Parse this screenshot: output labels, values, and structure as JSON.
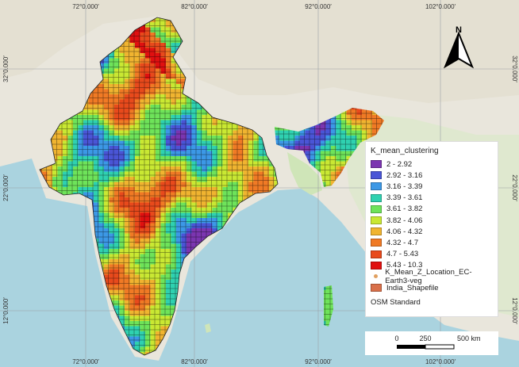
{
  "map": {
    "lon_labels": [
      "72°0.000′",
      "82°0.000′",
      "92°0.000′",
      "102°0.000′"
    ],
    "lat_labels": [
      "32°0.000′",
      "22°0.000′",
      "12°0.000′"
    ]
  },
  "legend": {
    "title": "K_mean_clustering",
    "classes": [
      {
        "label": "2 - 2.92",
        "color": "#7b35b0"
      },
      {
        "label": "2.92 - 3.16",
        "color": "#4a55d6"
      },
      {
        "label": "3.16 - 3.39",
        "color": "#3c98e6"
      },
      {
        "label": "3.39 - 3.61",
        "color": "#2fd1b0"
      },
      {
        "label": "3.61 - 3.82",
        "color": "#6ee35a"
      },
      {
        "label": "3.82 - 4.06",
        "color": "#c9e833"
      },
      {
        "label": "4.06 - 4.32",
        "color": "#f0b430"
      },
      {
        "label": "4.32 - 4.7",
        "color": "#f07a25"
      },
      {
        "label": "4.7 - 5.43",
        "color": "#e84a1c"
      },
      {
        "label": "5.43 - 10.3",
        "color": "#e01010"
      }
    ],
    "point_layer": "K_Mean_Z_Location_EC-Earth3-veg",
    "polygon_layer": "India_Shapefile",
    "polygon_color": "#d9704a",
    "basemap": "OSM Standard"
  },
  "scalebar": {
    "tick0": "0",
    "tick1": "250",
    "tick2": "500 km"
  },
  "north_arrow": {
    "label": "N",
    "icon": "north-arrow-icon"
  }
}
